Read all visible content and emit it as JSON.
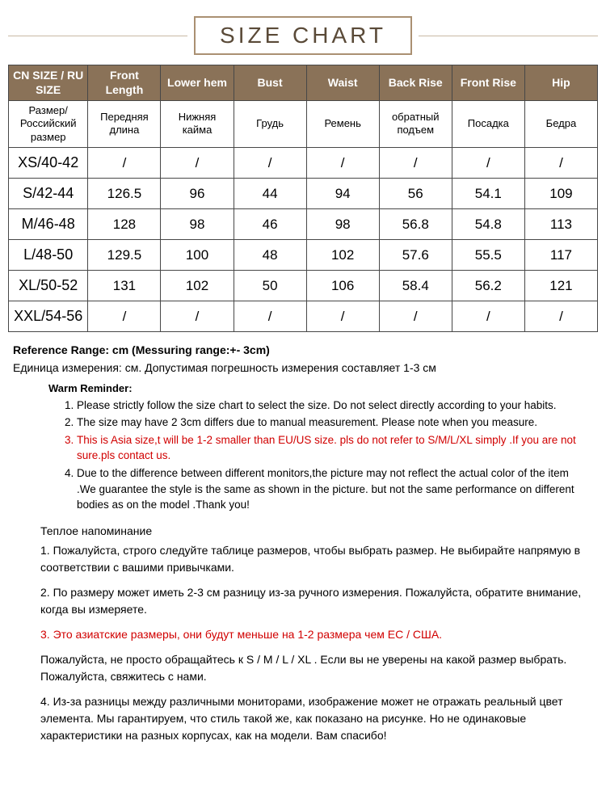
{
  "title": "SIZE CHART",
  "colors": {
    "header_bg": "#8a7258",
    "header_fg": "#ffffff",
    "border": "#474747",
    "highlight": "#d10000",
    "title_border": "#aa9072",
    "line": "#c9b9a4"
  },
  "columns": [
    {
      "en": "CN SIZE / RU SIZE",
      "ru": "Размер/Российский размер"
    },
    {
      "en": "Front Length",
      "ru": "Передняя длина"
    },
    {
      "en": "Lower hem",
      "ru": "Нижняя кайма"
    },
    {
      "en": "Bust",
      "ru": "Грудь"
    },
    {
      "en": "Waist",
      "ru": "Ремень"
    },
    {
      "en": "Back Rise",
      "ru": "обратный подъем"
    },
    {
      "en": "Front Rise",
      "ru": "Посадка"
    },
    {
      "en": "Hip",
      "ru": "Бедра"
    }
  ],
  "rows": [
    [
      "XS/40-42",
      "/",
      "/",
      "/",
      "/",
      "/",
      "/",
      "/"
    ],
    [
      "S/42-44",
      "126.5",
      "96",
      "44",
      "94",
      "56",
      "54.1",
      "109"
    ],
    [
      "M/46-48",
      "128",
      "98",
      "46",
      "98",
      "56.8",
      "54.8",
      "113"
    ],
    [
      "L/48-50",
      "129.5",
      "100",
      "48",
      "102",
      "57.6",
      "55.5",
      "117"
    ],
    [
      "XL/50-52",
      "131",
      "102",
      "50",
      "106",
      "58.4",
      "56.2",
      "121"
    ],
    [
      "XXL/54-56",
      "/",
      "/",
      "/",
      "/",
      "/",
      "/",
      "/"
    ]
  ],
  "reference": "Reference Range: cm (Messuring range:+- 3cm)",
  "unit_ru": "Единица измерения: см. Допустимая погрешность измерения составляет 1-3 см",
  "warm_en_title": "Warm Reminder:",
  "warm_en": [
    "Please strictly follow the size chart to select the size. Do not select directly according to your habits.",
    "The size may have 2 3cm differs due to manual measurement. Please note when you measure.",
    "This is Asia size,t will be 1-2 smaller than EU/US size. pls do not refer to S/M/L/XL simply .If you are not sure.pls contact us.",
    "Due to the difference between different monitors,the picture may not reflect the actual color of the item .We guarantee the style is the same as shown in the picture. but not the same performance on different bodies as on the model .Thank you!"
  ],
  "warm_en_highlight_index": 2,
  "warm_ru_title": "Теплое напоминание",
  "warm_ru": [
    {
      "text": "1. Пожалуйста, строго следуйте таблице размеров, чтобы выбрать размер. Не выбирайте напрямую в соответствии с вашими привычками.",
      "hl": false
    },
    {
      "text": "2. По размеру может иметь 2-3 см разницу из-за ручного измерения. Пожалуйста, обратите внимание, когда вы измеряете.",
      "hl": false
    },
    {
      "text": "3. Это азиатские размеры, они будут меньше на 1-2 размера чем ЕС / США.",
      "hl": true
    },
    {
      "text": "Пожалуйста, не просто обращайтесь к S / M / L / XL . Если вы не уверены на какой размер выбрать. Пожалуйста, свяжитесь с нами.",
      "hl": false
    },
    {
      "text": "4. Из-за разницы между различными мониторами, изображение может не отражать реальный цвет элемента. Мы гарантируем, что стиль такой же, как показано на рисунке. Но не одинаковые характеристики на разных корпусах, как на модели. Вам спасибо!",
      "hl": false
    }
  ]
}
